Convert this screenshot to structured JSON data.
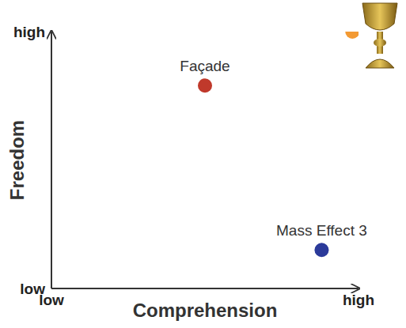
{
  "chart_data": {
    "type": "scatter",
    "x_label": "Comprehension",
    "y_label": "Freedom",
    "x": [
      5.0,
      8.8,
      9.8
    ],
    "values": [
      7.9,
      1.5,
      10
    ],
    "point_labels": [
      "Façade",
      "Mass Effect 3",
      null
    ],
    "colors": [
      "#c0392b",
      "#2b3a9a",
      "#f39a33"
    ],
    "xlim": [
      0,
      10
    ],
    "ylim": [
      0,
      10
    ],
    "xticks": [
      {
        "value": 0,
        "label": "low"
      },
      {
        "value": 10,
        "label": "high"
      }
    ],
    "yticks": [
      {
        "value": 0,
        "label": "low"
      },
      {
        "value": 10,
        "label": "high"
      }
    ],
    "grid": false
  }
}
